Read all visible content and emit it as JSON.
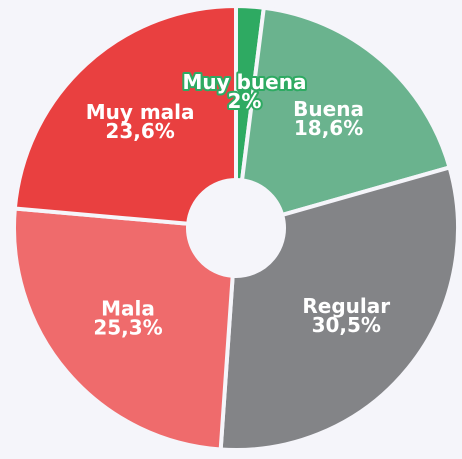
{
  "chart_data": {
    "type": "pie",
    "categories": [
      "Muy buena",
      "Buena",
      "Regular",
      "Mala",
      "Muy mala"
    ],
    "values": [
      2,
      18.6,
      30.5,
      25.3,
      23.6
    ],
    "value_labels": [
      "2%",
      "18,6%",
      "30,5%",
      "25,3%",
      "23,6%"
    ],
    "colors": [
      "#2eaa62",
      "#6ab38e",
      "#838487",
      "#ef6b6c",
      "#e94040"
    ]
  }
}
